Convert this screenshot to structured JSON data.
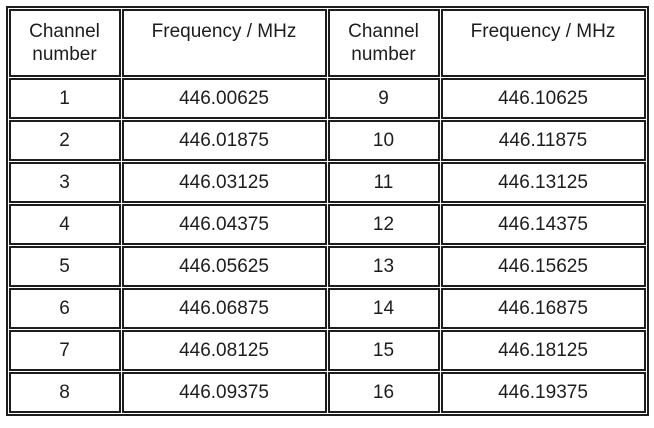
{
  "table": {
    "headers": [
      "Channel number",
      "Frequency / MHz",
      "Channel number",
      "Frequency / MHz"
    ],
    "rows": [
      [
        "1",
        "446.00625",
        "9",
        "446.10625"
      ],
      [
        "2",
        "446.01875",
        "10",
        "446.11875"
      ],
      [
        "3",
        "446.03125",
        "11",
        "446.13125"
      ],
      [
        "4",
        "446.04375",
        "12",
        "446.14375"
      ],
      [
        "5",
        "446.05625",
        "13",
        "446.15625"
      ],
      [
        "6",
        "446.06875",
        "14",
        "446.16875"
      ],
      [
        "7",
        "446.08125",
        "15",
        "446.18125"
      ],
      [
        "8",
        "446.09375",
        "16",
        "446.19375"
      ]
    ]
  },
  "colors": {
    "border": "#1d1d1d",
    "text": "#1d1d1d",
    "background": "#ffffff"
  }
}
